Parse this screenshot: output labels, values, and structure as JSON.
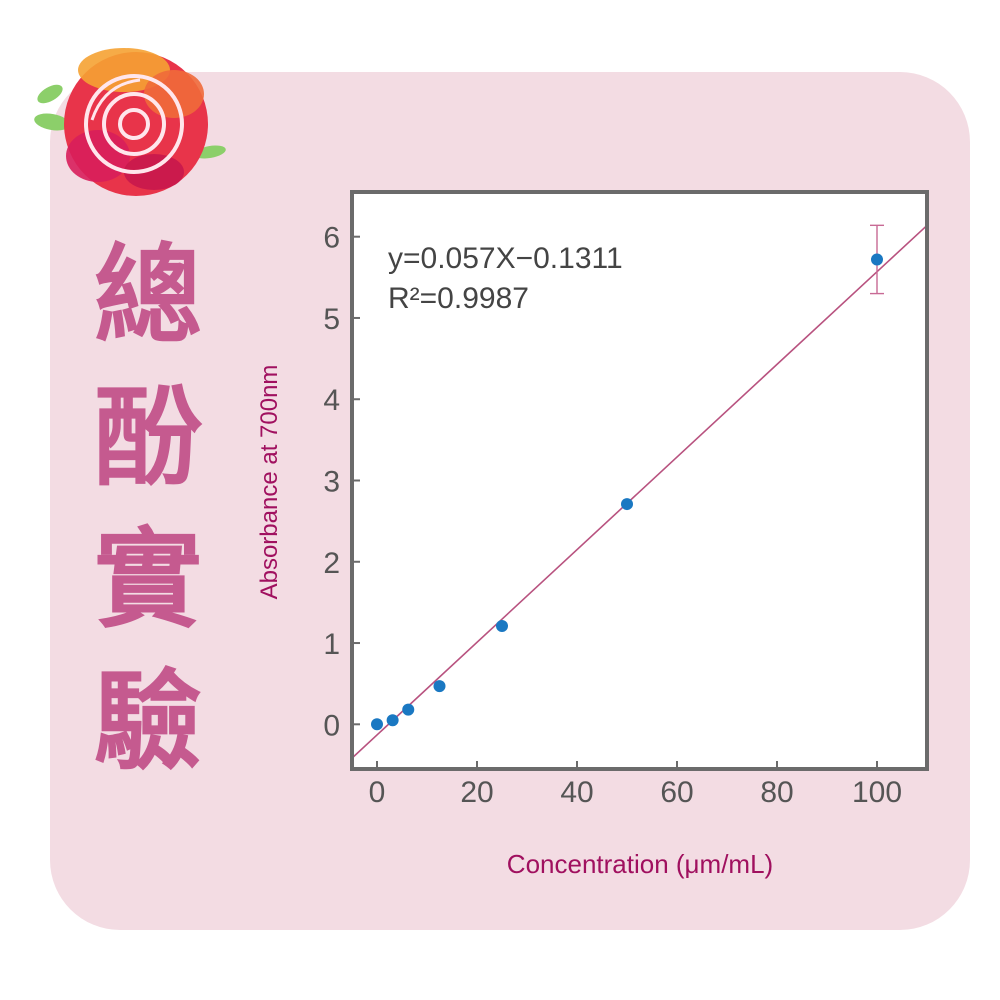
{
  "title_chars": [
    "總",
    "酚",
    "實",
    "驗"
  ],
  "colors": {
    "background": "#f3dce3",
    "title": "#c55a8f",
    "axis_label": "#a0105f",
    "fit_line": "#b8527f",
    "points": "#1a78c2",
    "error_bar": "#c86a95",
    "frame": "#6b6b6b",
    "tick_text": "#555555"
  },
  "chart_data": {
    "type": "scatter",
    "xlabel": "Concentration (μm/mL)",
    "ylabel": "Absorbance at 700nm",
    "xlim": [
      -5,
      110
    ],
    "ylim": [
      -0.55,
      6.55
    ],
    "xticks": [
      0,
      20,
      40,
      60,
      80,
      100
    ],
    "yticks": [
      0,
      1,
      2,
      3,
      4,
      5,
      6
    ],
    "grid": false,
    "points": [
      {
        "x": 0,
        "y": 0.0
      },
      {
        "x": 3.125,
        "y": 0.05
      },
      {
        "x": 6.25,
        "y": 0.18
      },
      {
        "x": 12.5,
        "y": 0.47
      },
      {
        "x": 25,
        "y": 1.21
      },
      {
        "x": 50,
        "y": 2.71
      },
      {
        "x": 100,
        "y": 5.72,
        "error": 0.42
      }
    ],
    "fit": {
      "slope": 0.057,
      "intercept": -0.1311
    },
    "annotations": [
      "y=0.057X−0.1311",
      "R²=0.9987"
    ]
  }
}
